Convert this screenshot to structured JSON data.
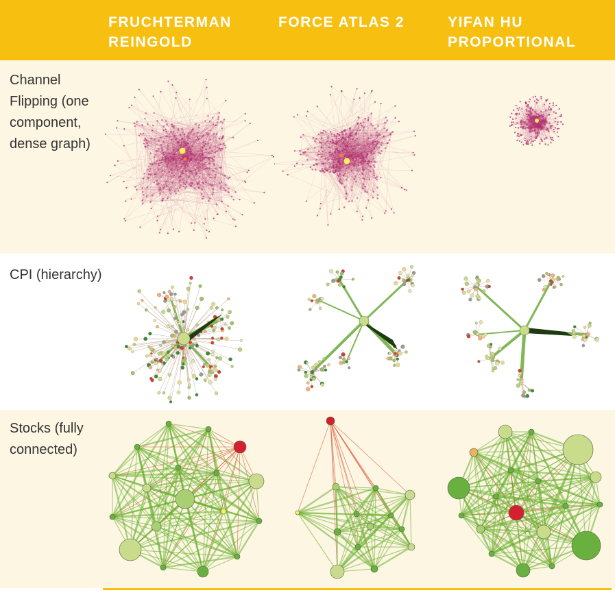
{
  "columns": [
    {
      "title": "FRUCHTERMAN\nREINGOLD"
    },
    {
      "title": "FORCE ATLAS 2"
    },
    {
      "title": "YIFAN HU\nPROPORTIONAL"
    }
  ],
  "rows": [
    {
      "label": "Channel\nFlipping (one\ncomponent,\ndense graph)"
    },
    {
      "label": "CPI (hierarchy)"
    },
    {
      "label": "Stocks (fully\nconnected)"
    }
  ],
  "colors": {
    "header": "#f7bf10",
    "cream": "#fdf6e3",
    "magenta": "#b03070",
    "dark_green": "#1e3a10",
    "green": "#6aaa3a",
    "light_green": "#c8dc8c",
    "red": "#d42030",
    "yellow": "#f8f060"
  }
}
